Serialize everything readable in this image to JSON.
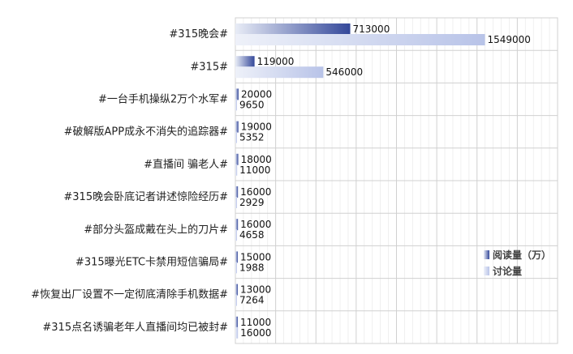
{
  "chart_data": {
    "type": "bar",
    "orientation": "horizontal",
    "categories": [
      "#315晚会#",
      "#315#",
      "#一台手机操纵2万个水军#",
      "#破解版APP成永不消失的追踪器#",
      "#直播间 骗老人#",
      "#315晚会卧底记者讲述惊险经历#",
      "#部分头盔成戴在头上的刀片#",
      "#315曝光ETC卡禁用短信骗局#",
      "#恢复出厂设置不一定彻底清除手机数据#",
      "#315点名诱骗老年人直播间均已被封#"
    ],
    "series": [
      {
        "name": "阅读量（万）",
        "values": [
          713000,
          119000,
          20000,
          19000,
          18000,
          16000,
          16000,
          15000,
          13000,
          11000
        ],
        "labels": [
          "713000",
          "119000",
          "20000",
          "19000",
          "18000",
          "16000",
          "16000",
          "15000",
          "13000",
          "11000"
        ]
      },
      {
        "name": "讨论量",
        "values": [
          1549000,
          546000,
          9650,
          5352,
          11000,
          2929,
          4658,
          1988,
          7264,
          16000
        ],
        "labels": [
          "1549000",
          "546000",
          "9650",
          "5352",
          "11000",
          "2929",
          "4658",
          "1988",
          "7264",
          "16000"
        ]
      }
    ],
    "xlim": [
      0,
      2000000
    ],
    "grid": true,
    "legend_position": "right",
    "colors": {
      "series1_start": "#e8ecf6",
      "series1_end": "#34489a",
      "series2_start": "#eef1f9",
      "series2_end": "#b8c3e8",
      "grid_major": "#d0d0d0",
      "grid_minor": "#ececec"
    }
  }
}
